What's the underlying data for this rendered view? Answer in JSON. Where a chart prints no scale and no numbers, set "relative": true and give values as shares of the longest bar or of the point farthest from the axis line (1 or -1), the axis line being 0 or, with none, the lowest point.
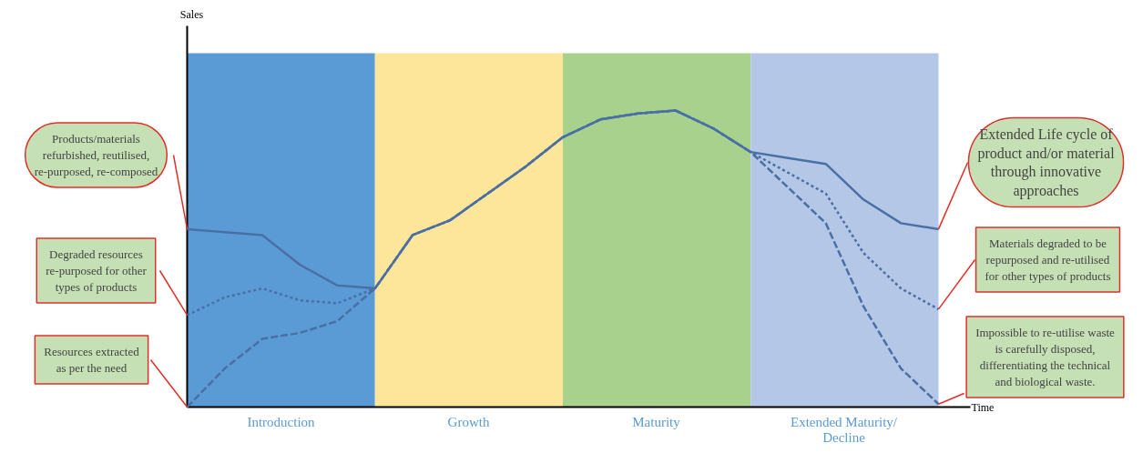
{
  "chart_data": {
    "type": "line",
    "relative": true,
    "xlabel": "Time",
    "categories": [
      null,
      null,
      null,
      null,
      null,
      null,
      null,
      null,
      null,
      null,
      null,
      null,
      null,
      null,
      null,
      null,
      null,
      null,
      null,
      null,
      null
    ],
    "series": [
      {
        "color": "#4a6fa5",
        "line_style": "dotted",
        "values": [
          0.31,
          0.37,
          0.4,
          0.36,
          0.35,
          0.4,
          0.58,
          0.63,
          0.72,
          0.81,
          0.91,
          0.97,
          0.99,
          1.0,
          0.94,
          0.86,
          0.79,
          0.72,
          0.52,
          0.4,
          0.33
        ]
      },
      {
        "color": "#4a6fa5",
        "line_style": "dashed",
        "values": [
          0.0,
          0.13,
          0.23,
          0.25,
          0.29,
          0.4,
          0.58,
          0.63,
          0.72,
          0.81,
          0.91,
          0.97,
          0.99,
          1.0,
          0.94,
          0.86,
          0.74,
          0.62,
          0.34,
          0.13,
          0.01
        ]
      },
      {
        "color": "#4a6fa5",
        "line_style": "solid",
        "values": [
          0.6,
          0.59,
          0.58,
          0.48,
          0.41,
          0.4,
          0.58,
          0.63,
          0.72,
          0.81,
          0.91,
          0.97,
          0.99,
          1.0,
          0.94,
          0.86,
          0.84,
          0.82,
          0.7,
          0.62,
          0.6
        ]
      }
    ],
    "annotations": [
      "Sales",
      "Products/materials refurbished, reutilised, re-purposed, re-composed",
      "Degraded resources re-purposed for other types of products",
      "Resources extracted as per the need",
      "Extended Life cycle of product and/or material through innovative approaches",
      "Materials degraded to be repurposed and re-utilised for other types of products",
      "Impossible to re-utilise waste is carefully disposed, differentiating the technical and biological waste.",
      "Introduction",
      "Growth",
      "Maturity",
      "Extended Maturity/ Decline"
    ]
  }
}
